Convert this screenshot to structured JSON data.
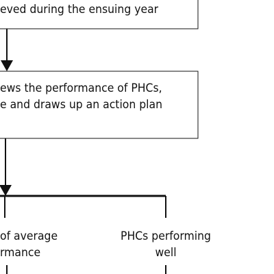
{
  "flowchart": {
    "box_top": {
      "line1": "eved during the ensuing year"
    },
    "box_middle": {
      "line1": "ews the performance of PHCs,",
      "line2": "e and draws up an action plan"
    },
    "branch_left": {
      "line1": "of average",
      "line2": "rmance"
    },
    "branch_right": {
      "line1": "PHCs performing",
      "line2": "well"
    }
  }
}
